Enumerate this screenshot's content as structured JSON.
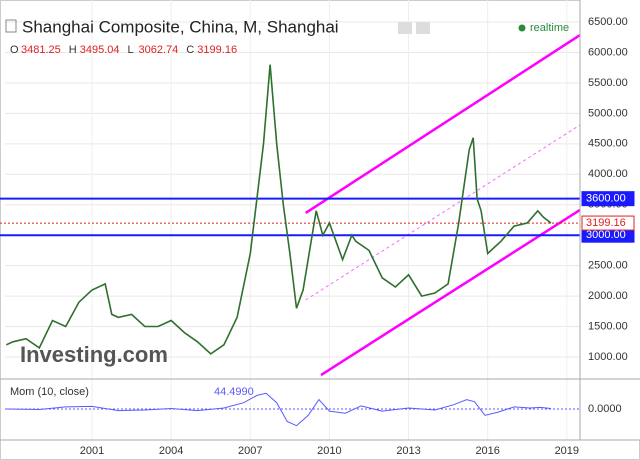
{
  "chart_data": [
    {
      "type": "line",
      "title": "Shanghai Composite, China, M, Shanghai",
      "realtime": "realtime",
      "watermark": "Investing.com",
      "ohlc": [
        {
          "label": "O",
          "value": 3481.25
        },
        {
          "label": "H",
          "value": 3495.04
        },
        {
          "label": "L",
          "value": 3062.74
        },
        {
          "label": "C",
          "value": 3199.16
        }
      ],
      "x": [
        1997.75,
        1998,
        1998.5,
        1999,
        1999.5,
        2000,
        2000.5,
        2001,
        2001.5,
        2001.75,
        2002,
        2002.5,
        2003,
        2003.5,
        2004,
        2004.5,
        2005,
        2005.5,
        2006,
        2006.5,
        2007,
        2007.25,
        2007.5,
        2007.75,
        2008,
        2008.25,
        2008.5,
        2008.75,
        2009,
        2009.5,
        2009.75,
        2010,
        2010.5,
        2010.85,
        2011,
        2011.5,
        2012,
        2012.5,
        2013,
        2013.5,
        2014,
        2014.5,
        2014.9,
        2015.3,
        2015.45,
        2015.6,
        2015.75,
        2016,
        2016.5,
        2017,
        2017.5,
        2017.9,
        2018.1,
        2018.4
      ],
      "values": [
        1200,
        1250,
        1300,
        1150,
        1600,
        1500,
        1900,
        2100,
        2200,
        1700,
        1650,
        1700,
        1500,
        1500,
        1600,
        1400,
        1250,
        1050,
        1200,
        1650,
        2700,
        3600,
        4500,
        5800,
        4500,
        3500,
        2700,
        1800,
        2100,
        3400,
        3000,
        3200,
        2600,
        3000,
        2900,
        2750,
        2300,
        2150,
        2350,
        2000,
        2050,
        2200,
        3200,
        4400,
        4600,
        3600,
        3400,
        2700,
        2900,
        3150,
        3200,
        3400,
        3300,
        3199.16
      ],
      "color": "#2f6f2f",
      "xlim": [
        1997.7,
        2019.5
      ],
      "xticks": [
        2001,
        2004,
        2007,
        2010,
        2013,
        2016,
        2019
      ],
      "ylim": [
        655,
        6862
      ],
      "yticks": [
        {
          "value": 1000,
          "label": "1000.00"
        },
        {
          "value": 1500,
          "label": "1500.00"
        },
        {
          "value": 2000,
          "label": "2000.00"
        },
        {
          "value": 2500,
          "label": "2500.00"
        },
        {
          "value": 3000,
          "label": "3000.00"
        },
        {
          "value": 3500,
          "label": "3500.00"
        },
        {
          "value": 4000,
          "label": "4000.00"
        },
        {
          "value": 4500,
          "label": "4500.00"
        },
        {
          "value": 5000,
          "label": "5000.00"
        },
        {
          "value": 5500,
          "label": "5500.00"
        },
        {
          "value": 6000,
          "label": "6000.00"
        },
        {
          "value": 6500,
          "label": "6500.00"
        }
      ],
      "hlines": [
        {
          "value": 3600,
          "label": "3600.00",
          "color": "#1a1aff"
        },
        {
          "value": 3000,
          "label": "3000.00",
          "color": "#1a1aff"
        },
        {
          "value": 3199.16,
          "label": "3199.16",
          "color": "#e02020"
        }
      ],
      "trendlines": [
        {
          "start": [
            2009.1,
            3365
          ],
          "end": [
            2019.5,
            6287
          ],
          "color": "#ff00ff",
          "dashed": false
        },
        {
          "start": [
            2009.68,
            704
          ],
          "end": [
            2019.5,
            3414
          ],
          "color": "#ff00ff",
          "dashed": false
        },
        {
          "start": [
            2009.1,
            1936
          ],
          "end": [
            2019.5,
            4810
          ],
          "color": "#ff66ff",
          "dashed": true
        }
      ]
    },
    {
      "type": "line",
      "title": "Mom (10, close)",
      "last": {
        "value": 44.499,
        "label": "44.4990"
      },
      "x": [
        1997.75,
        1999,
        2000,
        2001,
        2002,
        2003,
        2004,
        2005,
        2006,
        2006.75,
        2007.25,
        2007.6,
        2008,
        2008.4,
        2008.75,
        2009.2,
        2009.6,
        2010,
        2010.6,
        2011.2,
        2012,
        2013,
        2014,
        2014.7,
        2015.2,
        2015.5,
        2015.9,
        2016.4,
        2017,
        2017.6,
        2018,
        2018.4
      ],
      "values": [
        0,
        -50,
        200,
        250,
        -150,
        -100,
        50,
        -150,
        100,
        600,
        1300,
        1500,
        600,
        -1200,
        -1600,
        -600,
        900,
        -200,
        -400,
        300,
        -200,
        100,
        -100,
        400,
        900,
        700,
        -600,
        -300,
        200,
        100,
        150,
        44.499
      ],
      "color": "#5a5aff",
      "xlim": [
        1997.7,
        2019.5
      ],
      "ylim": [
        -2200,
        2200
      ],
      "yticks": [
        {
          "value": 0,
          "label": "0.0000"
        }
      ]
    }
  ]
}
